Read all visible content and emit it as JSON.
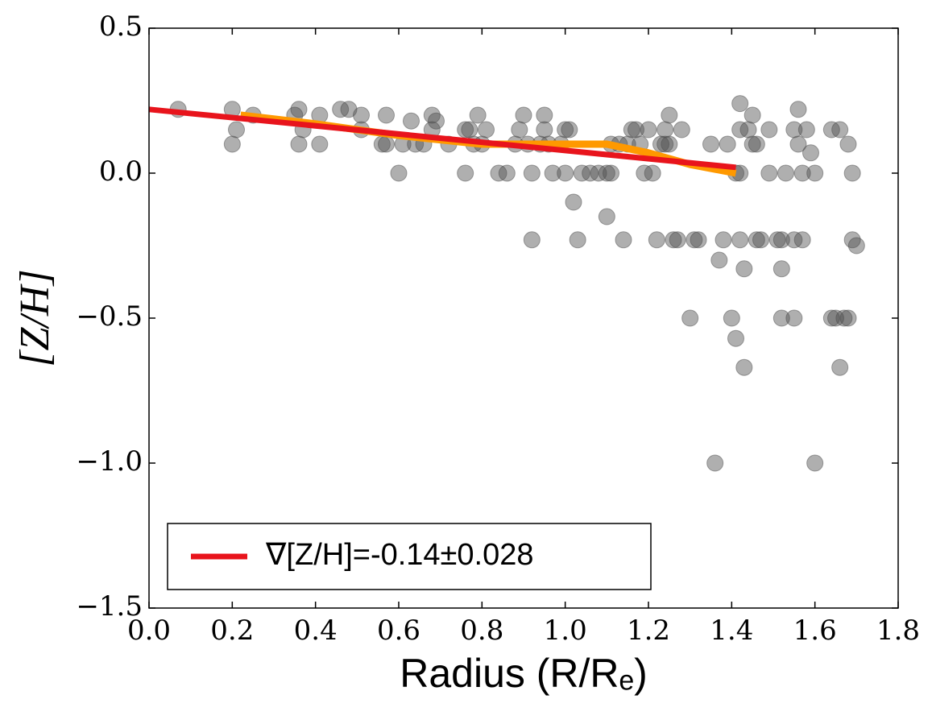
{
  "chart_data": {
    "type": "scatter",
    "xlabel": "Radius (R/Rₑ)",
    "ylabel": "[Z/H]",
    "xlim": [
      0,
      1.8
    ],
    "ylim": [
      -1.5,
      0.5
    ],
    "xticks": [
      {
        "value": 0,
        "label": "0.0"
      },
      {
        "value": 0.2,
        "label": "0.2"
      },
      {
        "value": 0.4,
        "label": "0.4"
      },
      {
        "value": 0.6,
        "label": "0.6"
      },
      {
        "value": 0.8,
        "label": "0.8"
      },
      {
        "value": 1.0,
        "label": "1.0"
      },
      {
        "value": 1.2,
        "label": "1.2"
      },
      {
        "value": 1.4,
        "label": "1.4"
      },
      {
        "value": 1.6,
        "label": "1.6"
      },
      {
        "value": 1.8,
        "label": "1.8"
      }
    ],
    "yticks": [
      {
        "value": 0.5,
        "label": "0.5"
      },
      {
        "value": 0,
        "label": "0.0"
      },
      {
        "value": -0.5,
        "label": "−0.5"
      },
      {
        "value": -1.0,
        "label": "−1.0"
      },
      {
        "value": -1.5,
        "label": "−1.5"
      }
    ],
    "legend": "lower left",
    "series": [
      {
        "type": "scatter",
        "color": "#4d4d4d",
        "x": [
          0.07,
          0.2,
          0.2,
          0.21,
          0.25,
          0.35,
          0.36,
          0.36,
          0.37,
          0.41,
          0.41,
          0.46,
          0.48,
          0.51,
          0.51,
          0.56,
          0.57,
          0.57,
          0.6,
          0.61,
          0.63,
          0.64,
          0.66,
          0.68,
          0.68,
          0.69,
          0.72,
          0.76,
          0.76,
          0.77,
          0.78,
          0.79,
          0.8,
          0.81,
          0.84,
          0.86,
          0.88,
          0.89,
          0.9,
          0.91,
          0.92,
          0.92,
          0.94,
          0.95,
          0.95,
          0.96,
          0.97,
          0.99,
          1.0,
          1.0,
          1.01,
          1.02,
          1.03,
          1.04,
          1.06,
          1.08,
          1.1,
          1.1,
          1.11,
          1.11,
          1.13,
          1.14,
          1.15,
          1.16,
          1.17,
          1.18,
          1.19,
          1.2,
          1.21,
          1.22,
          1.23,
          1.24,
          1.24,
          1.25,
          1.25,
          1.26,
          1.27,
          1.28,
          1.3,
          1.31,
          1.32,
          1.35,
          1.36,
          1.37,
          1.38,
          1.39,
          1.4,
          1.41,
          1.42,
          1.41,
          1.42,
          1.42,
          1.42,
          1.43,
          1.43,
          1.44,
          1.45,
          1.45,
          1.46,
          1.46,
          1.47,
          1.49,
          1.49,
          1.51,
          1.52,
          1.52,
          1.52,
          1.53,
          1.55,
          1.55,
          1.55,
          1.56,
          1.56,
          1.57,
          1.57,
          1.58,
          1.59,
          1.6,
          1.6,
          1.64,
          1.64,
          1.65,
          1.66,
          1.66,
          1.67,
          1.68,
          1.68,
          1.69,
          1.69,
          1.7
        ],
        "values": [
          0.22,
          0.1,
          0.22,
          0.15,
          0.2,
          0.2,
          0.22,
          0.1,
          0.15,
          0.1,
          0.2,
          0.22,
          0.22,
          0.2,
          0.15,
          0.1,
          0.1,
          0.2,
          0.0,
          0.1,
          0.18,
          0.1,
          0.1,
          0.2,
          0.15,
          0.18,
          0.1,
          0.0,
          0.15,
          0.15,
          0.1,
          0.2,
          0.1,
          0.15,
          0.0,
          0.0,
          0.1,
          0.15,
          0.2,
          0.1,
          0.0,
          -0.23,
          0.1,
          0.2,
          0.15,
          0.1,
          0.0,
          0.1,
          0.0,
          0.15,
          0.15,
          -0.1,
          -0.23,
          0.0,
          0.0,
          0.0,
          0.0,
          -0.15,
          0.0,
          0.1,
          0.1,
          -0.23,
          0.1,
          0.15,
          0.15,
          0.1,
          0.0,
          0.15,
          0.0,
          -0.23,
          0.1,
          0.1,
          0.15,
          0.2,
          0.1,
          -0.23,
          -0.23,
          0.15,
          -0.5,
          -0.23,
          -0.23,
          0.1,
          -1.0,
          -0.3,
          -0.23,
          0.1,
          -0.5,
          0.0,
          0.0,
          -0.57,
          0.24,
          0.15,
          -0.23,
          -0.33,
          -0.67,
          0.15,
          0.1,
          0.2,
          0.1,
          -0.23,
          -0.23,
          0.0,
          0.15,
          -0.23,
          -0.33,
          -0.5,
          -0.23,
          0.0,
          0.15,
          -0.23,
          -0.5,
          0.22,
          0.1,
          0.0,
          -0.23,
          0.15,
          0.07,
          0.0,
          -1.0,
          0.15,
          -0.5,
          -0.5,
          -0.67,
          0.15,
          -0.5,
          0.1,
          -0.5,
          0.0,
          -0.23,
          -0.25
        ]
      },
      {
        "type": "line",
        "color": "#ff9900",
        "x": [
          0.22,
          0.4,
          0.6,
          0.8,
          1.0,
          1.1,
          1.2,
          1.3,
          1.41
        ],
        "values": [
          0.2,
          0.17,
          0.13,
          0.1,
          0.1,
          0.1,
          0.07,
          0.03,
          0.0
        ]
      },
      {
        "type": "line",
        "color": "#e8141c",
        "name": "∇[Z/H]=-0.14±0.028",
        "x": [
          0,
          1.41
        ],
        "values": [
          0.22,
          0.02
        ]
      }
    ]
  }
}
